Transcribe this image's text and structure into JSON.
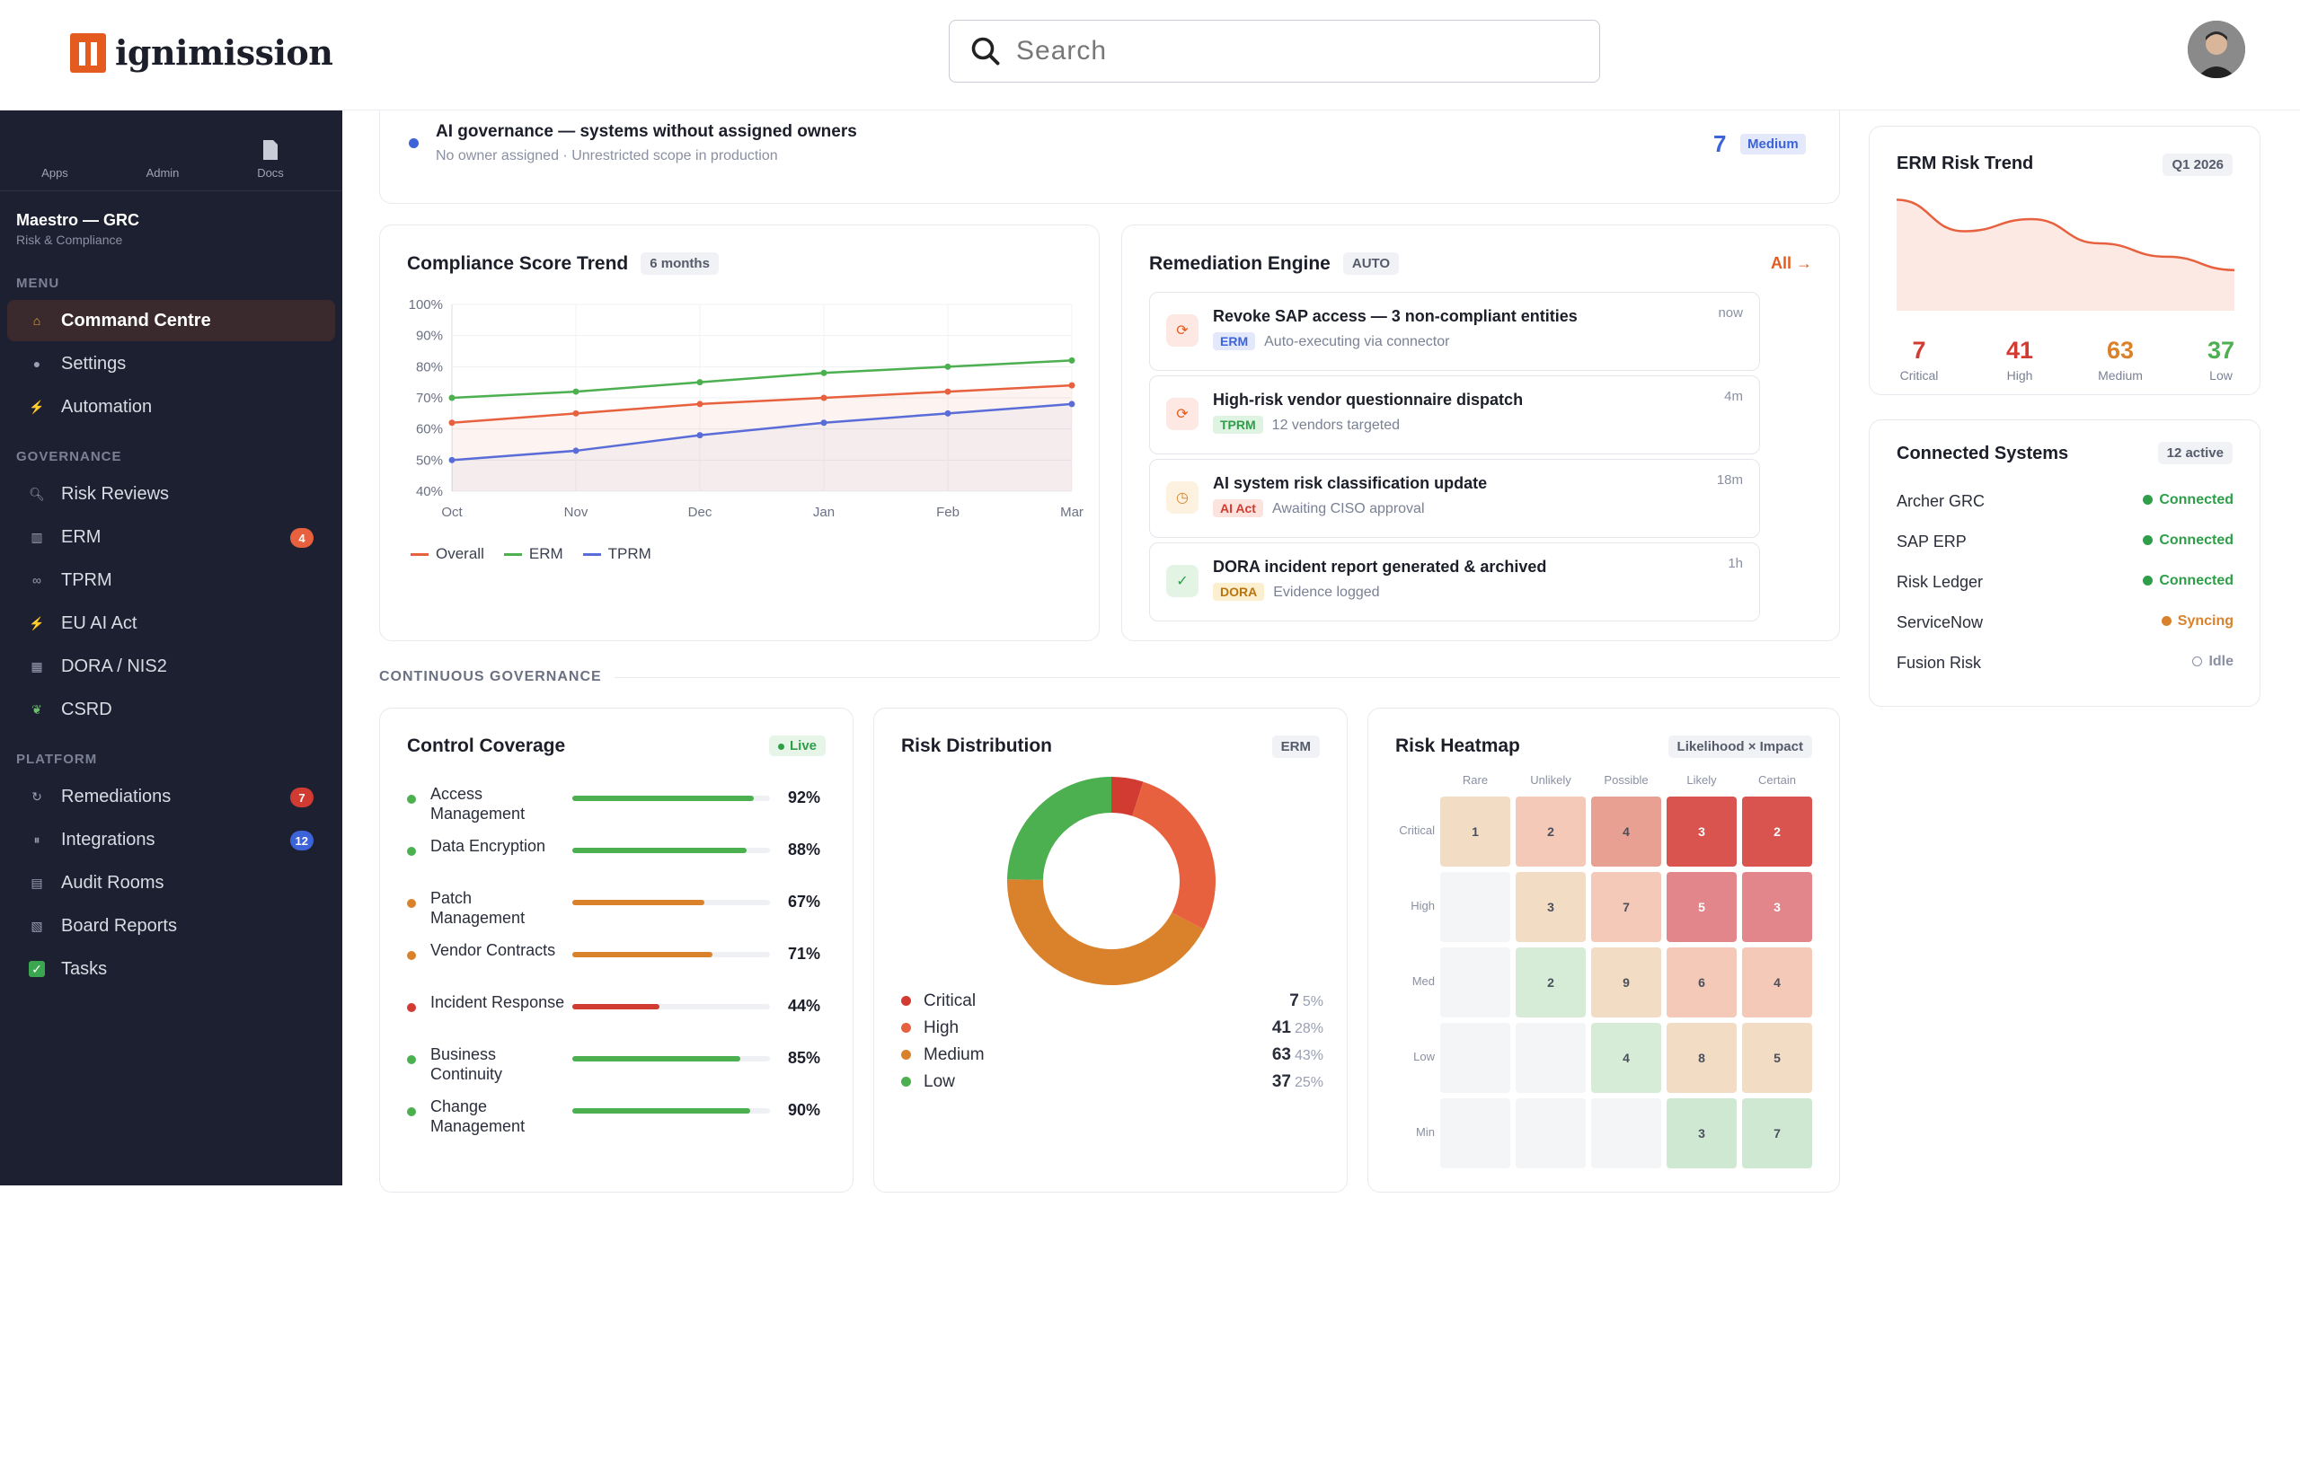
{
  "brand": {
    "name": "ignimission"
  },
  "search": {
    "placeholder": "Search"
  },
  "sidebar": {
    "top_buttons": [
      {
        "label": "Apps"
      },
      {
        "label": "Admin"
      },
      {
        "label": "Docs"
      }
    ],
    "product_name": "Maestro — GRC",
    "product_sub": "Risk & Compliance",
    "menu_title": "MENU",
    "menu": [
      {
        "label": "Command Centre",
        "icon": "home-icon"
      },
      {
        "label": "Settings",
        "icon": "gear-icon"
      },
      {
        "label": "Automation",
        "icon": "bolt-icon"
      }
    ],
    "governance_title": "GOVERNANCE",
    "governance": [
      {
        "label": "Risk Reviews",
        "icon": "search-icon"
      },
      {
        "label": "ERM",
        "icon": "bar-chart-icon",
        "badge": "4"
      },
      {
        "label": "TPRM",
        "icon": "link-icon"
      },
      {
        "label": "EU AI Act",
        "icon": "bolt-icon"
      },
      {
        "label": "DORA / NIS2",
        "icon": "grid-icon"
      },
      {
        "label": "CSRD",
        "icon": "leaf-icon"
      }
    ],
    "platform_title": "PLATFORM",
    "platform": [
      {
        "label": "Remediations",
        "icon": "refresh-icon",
        "badge": "7"
      },
      {
        "label": "Integrations",
        "icon": "plug-icon",
        "badge": "12"
      },
      {
        "label": "Audit Rooms",
        "icon": "folder-icon"
      },
      {
        "label": "Board Reports",
        "icon": "report-icon"
      },
      {
        "label": "Tasks",
        "icon": "check-icon"
      }
    ]
  },
  "alert": {
    "title": "AI governance — systems without assigned owners",
    "subtitle": "No owner assigned · Unrestricted scope in production",
    "count": "7",
    "severity": "Medium"
  },
  "compliance": {
    "title": "Compliance Score Trend",
    "range": "6 months"
  },
  "chart_data": {
    "type": "line",
    "title": "Compliance Score Trend",
    "categories": [
      "Oct",
      "Nov",
      "Dec",
      "Jan",
      "Feb",
      "Mar"
    ],
    "y_ticks": [
      "100%",
      "90%",
      "80%",
      "70%",
      "60%",
      "50%",
      "40%"
    ],
    "ylim": [
      40,
      100
    ],
    "series": [
      {
        "name": "Overall",
        "color": "#e8613f",
        "values": [
          62,
          65,
          68,
          70,
          72,
          74
        ]
      },
      {
        "name": "ERM",
        "color": "#4caf50",
        "values": [
          70,
          72,
          75,
          78,
          80,
          82
        ]
      },
      {
        "name": "TPRM",
        "color": "#5a6cd8",
        "values": [
          50,
          53,
          58,
          62,
          65,
          68
        ]
      }
    ]
  },
  "remediation": {
    "title": "Remediation Engine",
    "mode": "AUTO",
    "all_link": "All →",
    "items": [
      {
        "title": "Revoke SAP access — 3 non-compliant entities",
        "tag": "ERM",
        "desc": "Auto-executing via connector",
        "time": "now"
      },
      {
        "title": "High-risk vendor questionnaire dispatch",
        "tag": "TPRM",
        "desc": "12 vendors targeted",
        "time": "4m"
      },
      {
        "title": "AI system risk classification update",
        "tag": "AI Act",
        "desc": "Awaiting CISO approval",
        "time": "18m"
      },
      {
        "title": "DORA incident report generated & archived",
        "tag": "DORA",
        "desc": "Evidence logged",
        "time": "1h"
      }
    ]
  },
  "section_label": "CONTINUOUS GOVERNANCE",
  "coverage": {
    "title": "Control Coverage",
    "status": "Live",
    "rows": [
      {
        "name": "Access Management",
        "pct": 92,
        "label": "92%",
        "color": "#4caf50"
      },
      {
        "name": "Data Encryption",
        "pct": 88,
        "label": "88%",
        "color": "#4caf50"
      },
      {
        "name": "Patch Management",
        "pct": 67,
        "label": "67%",
        "color": "#d9822b"
      },
      {
        "name": "Vendor Contracts",
        "pct": 71,
        "label": "71%",
        "color": "#d9822b"
      },
      {
        "name": "Incident Response",
        "pct": 44,
        "label": "44%",
        "color": "#d23b32"
      },
      {
        "name": "Business Continuity",
        "pct": 85,
        "label": "85%",
        "color": "#4caf50"
      },
      {
        "name": "Change Management",
        "pct": 90,
        "label": "90%",
        "color": "#4caf50"
      }
    ]
  },
  "distribution": {
    "title": "Risk Distribution",
    "tag": "ERM",
    "items": [
      {
        "name": "Critical",
        "value": "7",
        "pct": "5%",
        "color": "#d23b32",
        "share": 5
      },
      {
        "name": "High",
        "value": "41",
        "pct": "28%",
        "color": "#e8613f",
        "share": 28
      },
      {
        "name": "Medium",
        "value": "63",
        "pct": "43%",
        "color": "#d9822b",
        "share": 43
      },
      {
        "name": "Low",
        "value": "37",
        "pct": "25%",
        "color": "#4caf50",
        "share": 25
      }
    ]
  },
  "heatmap": {
    "title": "Risk Heatmap",
    "axis": "Likelihood × Impact",
    "cols": [
      "Rare",
      "Unlikely",
      "Possible",
      "Likely",
      "Certain"
    ],
    "rows": [
      "Critical",
      "High",
      "Med",
      "Low",
      "Min"
    ],
    "cells": [
      [
        {
          "v": "1",
          "c": "#f2dcc3"
        },
        {
          "v": "2",
          "c": "#f5c9b8"
        },
        {
          "v": "4",
          "c": "#e8a092"
        },
        {
          "v": "3",
          "c": "#d9534f"
        },
        {
          "v": "2",
          "c": "#d9534f"
        }
      ],
      [
        {
          "v": "",
          "c": "#f4f5f7"
        },
        {
          "v": "3",
          "c": "#f2dcc3"
        },
        {
          "v": "7",
          "c": "#f5c9b8"
        },
        {
          "v": "5",
          "c": "#e3868b"
        },
        {
          "v": "3",
          "c": "#e3868b"
        }
      ],
      [
        {
          "v": "",
          "c": "#f4f5f7"
        },
        {
          "v": "2",
          "c": "#d6ecd7"
        },
        {
          "v": "9",
          "c": "#f2dcc3"
        },
        {
          "v": "6",
          "c": "#f5c9b8"
        },
        {
          "v": "4",
          "c": "#f5c9b8"
        }
      ],
      [
        {
          "v": "",
          "c": "#f4f5f7"
        },
        {
          "v": "",
          "c": "#f4f5f7"
        },
        {
          "v": "4",
          "c": "#d6ecd7"
        },
        {
          "v": "8",
          "c": "#f2dcc3"
        },
        {
          "v": "5",
          "c": "#f2dcc3"
        }
      ],
      [
        {
          "v": "",
          "c": "#f4f5f7"
        },
        {
          "v": "",
          "c": "#f4f5f7"
        },
        {
          "v": "",
          "c": "#f4f5f7"
        },
        {
          "v": "3",
          "c": "#cfe8d1"
        },
        {
          "v": "7",
          "c": "#cfe8d1"
        }
      ]
    ]
  },
  "erm_trend": {
    "title": "ERM Risk Trend",
    "period": "Q1 2026",
    "trend_values": [
      96,
      70,
      80,
      60,
      49,
      38
    ],
    "stats": [
      {
        "n": "7",
        "l": "Critical",
        "color": "#d23b32"
      },
      {
        "n": "41",
        "l": "High",
        "color": "#d23b32"
      },
      {
        "n": "63",
        "l": "Medium",
        "color": "#d9822b"
      },
      {
        "n": "37",
        "l": "Low",
        "color": "#4caf50"
      }
    ]
  },
  "systems": {
    "title": "Connected Systems",
    "count": "12 active",
    "items": [
      {
        "name": "Archer GRC",
        "status": "Connected",
        "color": "#2e9e48"
      },
      {
        "name": "SAP ERP",
        "status": "Connected",
        "color": "#2e9e48"
      },
      {
        "name": "Risk Ledger",
        "status": "Connected",
        "color": "#2e9e48"
      },
      {
        "name": "ServiceNow",
        "status": "Syncing",
        "color": "#d9822b"
      },
      {
        "name": "Fusion Risk",
        "status": "Idle",
        "color": "#8a90a2"
      }
    ]
  }
}
